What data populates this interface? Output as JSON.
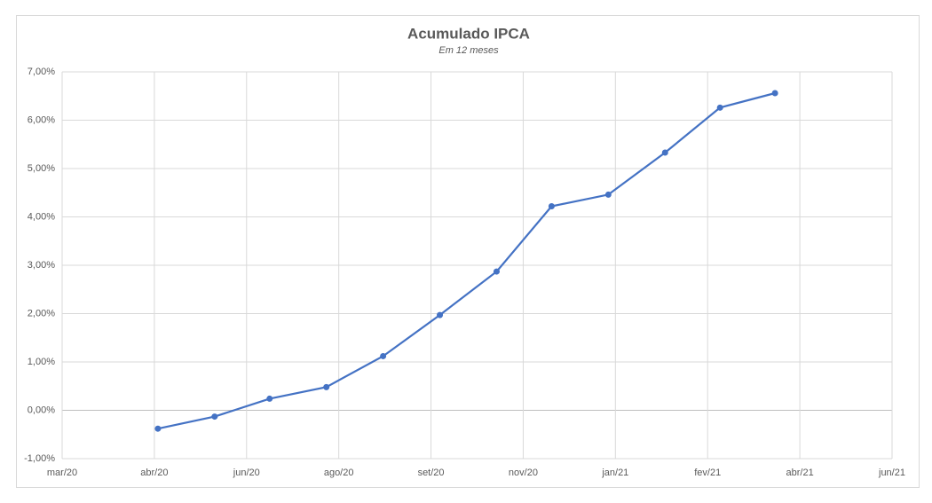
{
  "chart_data": {
    "type": "line",
    "title": "Acumulado IPCA",
    "subtitle": "Em 12 meses",
    "x": [
      "2020-04-24",
      "2020-05-26",
      "2020-06-26",
      "2020-07-28",
      "2020-08-29",
      "2020-09-30",
      "2020-11-01",
      "2020-12-02",
      "2021-01-03",
      "2021-02-04",
      "2021-03-07",
      "2021-04-07"
    ],
    "series": [
      {
        "name": "IPCA",
        "color": "#4472c4",
        "values": [
          -0.38,
          -0.13,
          0.24,
          0.48,
          1.12,
          1.97,
          2.87,
          4.22,
          4.46,
          5.33,
          6.26,
          6.56
        ]
      }
    ],
    "xlim": [
      "2020-03-01",
      "2021-06-12"
    ],
    "xticks": [
      {
        "value": "2020-03-01",
        "label": "mar/20"
      },
      {
        "value": "2020-04-22",
        "label": "abr/20"
      },
      {
        "value": "2020-06-13",
        "label": "jun/20"
      },
      {
        "value": "2020-08-04",
        "label": "ago/20"
      },
      {
        "value": "2020-09-25",
        "label": "set/20"
      },
      {
        "value": "2020-11-16",
        "label": "nov/20"
      },
      {
        "value": "2021-01-07",
        "label": "jan/21"
      },
      {
        "value": "2021-02-28",
        "label": "fev/21"
      },
      {
        "value": "2021-04-21",
        "label": "abr/21"
      },
      {
        "value": "2021-06-12",
        "label": "jun/21"
      }
    ],
    "ylim": [
      -1,
      7
    ],
    "yticks": [
      {
        "value": -1,
        "label": "-1,00%"
      },
      {
        "value": 0,
        "label": "0,00%"
      },
      {
        "value": 1,
        "label": "1,00%"
      },
      {
        "value": 2,
        "label": "2,00%"
      },
      {
        "value": 3,
        "label": "3,00%"
      },
      {
        "value": 4,
        "label": "4,00%"
      },
      {
        "value": 5,
        "label": "5,00%"
      },
      {
        "value": 6,
        "label": "6,00%"
      },
      {
        "value": 7,
        "label": "7,00%"
      }
    ],
    "grid": true
  }
}
